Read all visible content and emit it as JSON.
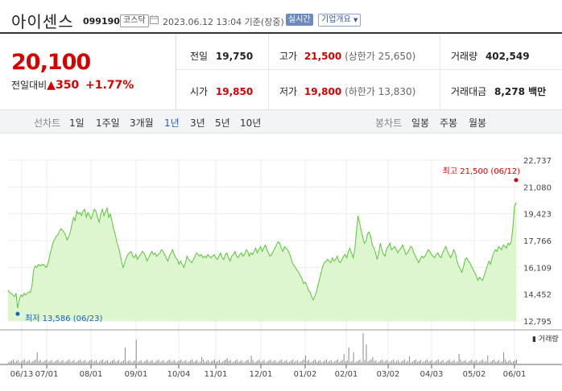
{
  "header": {
    "title": "아이센스",
    "code": "099190",
    "market": "코스닥",
    "datetime": "2023.06.12 13:04 기준(장중)",
    "realtime": "실시간",
    "corp_info": "기업개요"
  },
  "quote": {
    "price": "20,100",
    "change_label": "전일대비",
    "change_value": "350",
    "change_pct": "+1.77%",
    "items": [
      {
        "label": "전일",
        "value": "19,750",
        "extra": ""
      },
      {
        "label": "고가",
        "value": "21,500",
        "extra": "(상한가 25,650)"
      },
      {
        "label": "거래량",
        "value": "402,549",
        "extra": ""
      },
      {
        "label": "시가",
        "value": "19,850",
        "extra": ""
      },
      {
        "label": "저가",
        "value": "19,800",
        "extra": "(하한가 13,830)"
      },
      {
        "label": "거래대금",
        "value": "8,278 백만",
        "extra": ""
      }
    ]
  },
  "tabs": {
    "line_label": "선차트",
    "line": [
      "1일",
      "1주일",
      "3개월",
      "1년",
      "3년",
      "5년",
      "10년"
    ],
    "active": "1년",
    "candle_label": "봉차트",
    "candle": [
      "일봉",
      "주봉",
      "월봉"
    ]
  },
  "colors": {
    "up": "#d60000",
    "down": "#1a5fc7",
    "line": "#5cc43c",
    "area": "#d9f5cc",
    "active": "#2f5eb7"
  },
  "chart_data": {
    "type": "area",
    "x_ticks": [
      "06/13",
      "07/01",
      "08/01",
      "09/01",
      "10/04",
      "11/01",
      "12/01",
      "01/02",
      "02/01",
      "03/02",
      "04/03",
      "05/02",
      "06/01"
    ],
    "y_ticks": [
      "22,737",
      "21,080",
      "19,423",
      "17,766",
      "16,109",
      "14,452",
      "12,795"
    ],
    "ylim": [
      12795,
      22737
    ],
    "high_label": "최고 21,500 (06/12)",
    "low_label": "최저 13,586 (06/23)",
    "volume_label": "거래량",
    "values": [
      14700,
      14550,
      14500,
      14400,
      14300,
      14500,
      13586,
      14100,
      14400,
      14300,
      14500,
      14400,
      14500,
      14600,
      14550,
      15000,
      15900,
      16200,
      16100,
      16300,
      16200,
      16250,
      16300,
      16200,
      16100,
      16350,
      16800,
      17200,
      17600,
      17800,
      18000,
      18100,
      18300,
      18500,
      18400,
      18300,
      18100,
      17800,
      18000,
      18300,
      18800,
      19200,
      19000,
      19600,
      19400,
      19500,
      19300,
      19600,
      19700,
      19200,
      19500,
      19300,
      19100,
      19400,
      19700,
      19600,
      19200,
      18900,
      19400,
      19700,
      19300,
      19500,
      19800,
      19200,
      19400,
      19000,
      18500,
      18200,
      17700,
      17400,
      17000,
      16500,
      16100,
      16400,
      16700,
      16900,
      17000,
      17100,
      16800,
      16700,
      16900,
      16600,
      16800,
      16900,
      17100,
      17000,
      16800,
      16500,
      16700,
      16900,
      17100,
      16900,
      17000,
      16800,
      16900,
      17000,
      17200,
      17100,
      16900,
      16700,
      16500,
      16800,
      17000,
      17200,
      16900,
      16700,
      16600,
      16300,
      16500,
      16300,
      16100,
      16400,
      16800,
      16600,
      16500,
      16400,
      16600,
      16800,
      17000,
      16900,
      16800,
      16900,
      16700,
      16800,
      16700,
      16900,
      16800,
      16700,
      16800,
      16900,
      16700,
      16600,
      16800,
      17000,
      16700,
      16600,
      16900,
      17000,
      16700,
      16500,
      16800,
      16900,
      17100,
      16800,
      16700,
      16900,
      17000,
      16800,
      16900,
      17200,
      17100,
      16800,
      17000,
      16900,
      17100,
      17300,
      17000,
      17200,
      17400,
      17100,
      17300,
      17500,
      17200,
      17000,
      16800,
      16900,
      17100,
      17300,
      17500,
      17700,
      17600,
      17300,
      17100,
      17400,
      17300,
      17200,
      17000,
      16700,
      16400,
      16200,
      16100,
      15900,
      15800,
      15600,
      15400,
      15100,
      15200,
      15000,
      14700,
      14600,
      14300,
      14100,
      14300,
      14600,
      15000,
      15400,
      15800,
      16200,
      16400,
      16500,
      16600,
      16500,
      16400,
      16700,
      16500,
      16600,
      16800,
      16500,
      16400,
      16600,
      16800,
      16900,
      16700,
      17100,
      17300,
      17000,
      16700,
      17200,
      18300,
      19300,
      18900,
      18400,
      18000,
      17600,
      17700,
      18200,
      18300,
      18000,
      17500,
      17300,
      17000,
      16600,
      17000,
      17600,
      17200,
      16900,
      16800,
      17300,
      17400,
      17600,
      17200,
      17300,
      17400,
      17200,
      17000,
      17200,
      17300,
      17500,
      17200,
      16900,
      17000,
      17200,
      17400,
      17300,
      17000,
      16800,
      16600,
      16400,
      16600,
      16800,
      16700,
      16800,
      17000,
      17200,
      17100,
      16900,
      16800,
      16700,
      16900,
      17000,
      16800,
      16700,
      17000,
      17200,
      17400,
      17100,
      16900,
      16700,
      16900,
      17200,
      17000,
      16500,
      16200,
      16000,
      15800,
      16100,
      16600,
      16700,
      16500,
      16400,
      16200,
      16000,
      15800,
      15600,
      15300,
      15500,
      15400,
      15300,
      15600,
      15900,
      16200,
      16500,
      16300,
      16700,
      17000,
      17200,
      17100,
      17400,
      17300,
      17200,
      17500,
      17400,
      17300,
      17600,
      17500,
      17700,
      18600,
      19900,
      20100
    ]
  }
}
